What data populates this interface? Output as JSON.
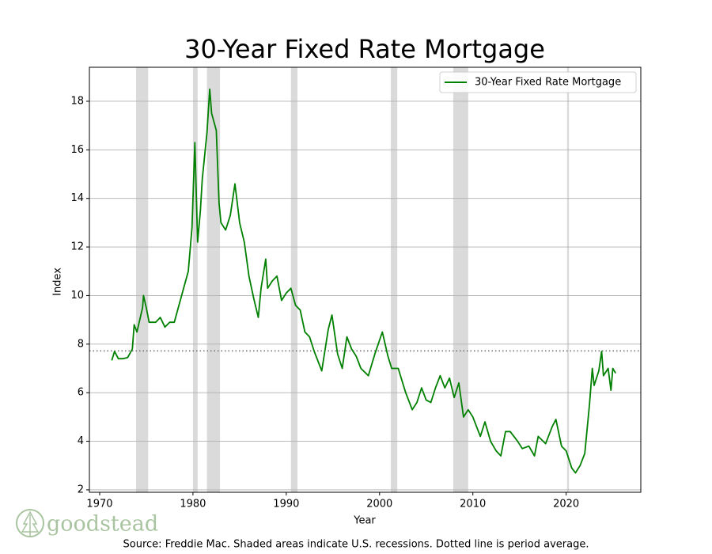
{
  "chart_data": {
    "type": "line",
    "title": "30-Year Fixed Rate Mortgage",
    "x_label": "Year",
    "y_label": "Index",
    "source": "Source: Freddie Mac. Shaded areas indicate U.S. recessions. Dotted line is period average.",
    "logo": "goodstead",
    "xlim": [
      1968.9,
      2028.0
    ],
    "ylim": [
      1.9,
      19.4
    ],
    "xticks": [
      1970,
      1980,
      1990,
      2000,
      2010,
      2020
    ],
    "yticks": [
      2,
      4,
      6,
      8,
      10,
      12,
      14,
      16,
      18
    ],
    "grid": true,
    "legend_position": "upper right",
    "average": 7.72,
    "recession_color": "#d3d3d3",
    "recessions": [
      [
        1973.9,
        1975.2
      ],
      [
        1980.0,
        1980.5
      ],
      [
        1981.5,
        1982.9
      ],
      [
        1990.5,
        1991.2
      ],
      [
        2001.2,
        2001.9
      ],
      [
        2007.9,
        2009.5
      ],
      [
        2020.1,
        2020.3
      ]
    ],
    "x": [
      1971.3,
      1971.6,
      1972.0,
      1972.5,
      1973.0,
      1973.5,
      1973.7,
      1974.0,
      1974.6,
      1974.7,
      1975.0,
      1975.3,
      1976.0,
      1976.5,
      1977.0,
      1977.5,
      1978.0,
      1978.5,
      1979.0,
      1979.5,
      1979.9,
      1980.2,
      1980.5,
      1980.8,
      1981.0,
      1981.5,
      1981.8,
      1982.0,
      1982.5,
      1982.8,
      1983.0,
      1983.5,
      1984.0,
      1984.5,
      1985.0,
      1985.5,
      1986.0,
      1986.5,
      1987.0,
      1987.3,
      1987.8,
      1988.0,
      1988.5,
      1989.0,
      1989.5,
      1990.0,
      1990.5,
      1991.0,
      1991.5,
      1992.0,
      1992.5,
      1993.0,
      1993.8,
      1994.5,
      1994.9,
      1995.5,
      1996.0,
      1996.5,
      1997.0,
      1997.5,
      1998.0,
      1998.8,
      1999.5,
      2000.3,
      2000.9,
      2001.3,
      2002.0,
      2002.8,
      2003.5,
      2004.0,
      2004.5,
      2005.0,
      2005.5,
      2006.0,
      2006.5,
      2007.0,
      2007.5,
      2008.0,
      2008.5,
      2009.0,
      2009.5,
      2010.0,
      2010.8,
      2011.3,
      2011.9,
      2012.5,
      2013.0,
      2013.5,
      2014.0,
      2014.8,
      2015.3,
      2016.0,
      2016.6,
      2017.0,
      2017.8,
      2018.5,
      2018.9,
      2019.5,
      2020.0,
      2020.6,
      2021.0,
      2021.5,
      2022.0,
      2022.5,
      2022.8,
      2023.0,
      2023.5,
      2023.8,
      2024.0,
      2024.5,
      2024.8,
      2025.0,
      2025.3
    ],
    "series": [
      {
        "name": "30-Year Fixed Rate Mortgage",
        "color": "#008000",
        "values": [
          7.33,
          7.7,
          7.4,
          7.4,
          7.45,
          7.8,
          8.8,
          8.5,
          9.5,
          10.0,
          9.5,
          8.9,
          8.9,
          9.1,
          8.7,
          8.9,
          8.9,
          9.6,
          10.3,
          11.0,
          12.8,
          16.3,
          12.2,
          13.5,
          14.8,
          16.7,
          18.5,
          17.5,
          16.8,
          13.8,
          13.0,
          12.7,
          13.3,
          14.6,
          13.0,
          12.2,
          10.8,
          9.9,
          9.1,
          10.3,
          11.5,
          10.3,
          10.6,
          10.8,
          9.8,
          10.1,
          10.3,
          9.6,
          9.4,
          8.5,
          8.3,
          7.7,
          6.9,
          8.6,
          9.2,
          7.6,
          7.0,
          8.3,
          7.8,
          7.5,
          7.0,
          6.7,
          7.6,
          8.5,
          7.5,
          7.0,
          7.0,
          6.0,
          5.3,
          5.6,
          6.2,
          5.7,
          5.6,
          6.2,
          6.7,
          6.2,
          6.6,
          5.8,
          6.4,
          5.0,
          5.3,
          5.0,
          4.2,
          4.8,
          4.0,
          3.6,
          3.4,
          4.4,
          4.4,
          4.0,
          3.7,
          3.8,
          3.4,
          4.2,
          3.9,
          4.6,
          4.9,
          3.8,
          3.6,
          2.9,
          2.7,
          3.0,
          3.5,
          5.5,
          7.0,
          6.3,
          6.9,
          7.7,
          6.7,
          7.0,
          6.1,
          7.0,
          6.8
        ]
      }
    ]
  }
}
